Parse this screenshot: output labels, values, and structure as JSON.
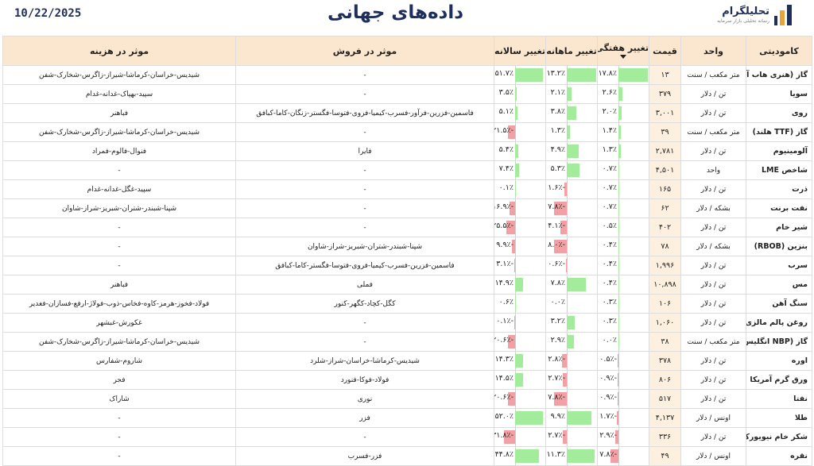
{
  "header": {
    "date": "10/22/2025",
    "title": "داده‌های جهانی",
    "logo_name": "تحلیلگرام",
    "logo_sub": "رسانه تحلیلی بازار سرمایه"
  },
  "columns": {
    "commodity": "کامودیتی",
    "unit": "واحد",
    "price": "قیمت",
    "weekly": "تغییر هفتگی",
    "monthly": "تغییر ماهانه",
    "yearly": "تغییر سالانه",
    "sales": "موثر در فروش",
    "cost": "موثر در هزینه"
  },
  "colors": {
    "positive": "#a3ec9c",
    "negative": "#f2a0a4",
    "header": "#fbe7cf",
    "price_cell": "#fdf0df"
  },
  "rows": [
    {
      "name": "گاز (هنری هاب آمریکا)",
      "unit": "متر مکعب / سنت",
      "price": "۱۳",
      "weekly": 17.8,
      "weekly_text": "۱۷.۸٪",
      "monthly": 13.2,
      "monthly_text": "۱۳.۲٪",
      "yearly": 51.7,
      "yearly_text": "۵۱.۷٪",
      "sales": "-",
      "cost": "شیدیس-خراسان-کرماشا-شیراز-زاگرس-شخارک-شفن"
    },
    {
      "name": "سویا",
      "unit": "تن / دلار",
      "price": "۳۷۹",
      "weekly": 2.6,
      "weekly_text": "۲.۶٪",
      "monthly": 2.1,
      "monthly_text": "۲.۱٪",
      "yearly": 3.5,
      "yearly_text": "۳.۵٪",
      "sales": "-",
      "cost": "سپید-بهپاک-غدانه-غدام"
    },
    {
      "name": "روی",
      "unit": "تن / دلار",
      "price": "۳,۰۰۱",
      "weekly": 2.0,
      "weekly_text": "۲.۰٪",
      "monthly": 3.8,
      "monthly_text": "۳.۸٪",
      "yearly": 5.1,
      "yearly_text": "۵.۱٪",
      "sales": "فاسمین-فزرین-فرآور-فسرب-کیمیا-فروی-فتوسا-فگستر-زنگان-کاما-کبافق",
      "cost": "فباهنر"
    },
    {
      "name": "گاز (TTF هلند)",
      "unit": "متر مکعب / سنت",
      "price": "۳۹",
      "weekly": 1.4,
      "weekly_text": "۱.۴٪",
      "monthly": 1.3,
      "monthly_text": "۱.۳٪",
      "yearly": -21.5,
      "yearly_text": "-۲۱.۵٪",
      "sales": "-",
      "cost": "شیدیس-خراسان-کرماشا-شیراز-زاگرس-شخارک-شفن"
    },
    {
      "name": "آلومینیوم",
      "unit": "تن / دلار",
      "price": "۲,۷۸۱",
      "weekly": 1.3,
      "weekly_text": "۱.۳٪",
      "monthly": 4.9,
      "monthly_text": "۴.۹٪",
      "yearly": 5.4,
      "yearly_text": "۵.۴٪",
      "sales": "فایرا",
      "cost": "فنوال-فالوم-فمراد"
    },
    {
      "name": "شاخص LME",
      "unit": "واحد",
      "price": "۴,۵۰۱",
      "weekly": 0.7,
      "weekly_text": "۰.۷٪",
      "monthly": 5.3,
      "monthly_text": "۵.۳٪",
      "yearly": 7.4,
      "yearly_text": "۷.۴٪",
      "sales": "-",
      "cost": "-"
    },
    {
      "name": "ذرت",
      "unit": "تن / دلار",
      "price": "۱۶۵",
      "weekly": 0.7,
      "weekly_text": "۰.۷٪",
      "monthly": -1.6,
      "monthly_text": "-۱.۶٪",
      "yearly": 0.1,
      "yearly_text": "۰.۱٪",
      "sales": "-",
      "cost": "سپید-غگل-غدانه-غدام"
    },
    {
      "name": "نفت برنت",
      "unit": "بشکه / دلار",
      "price": "۶۲",
      "weekly": 0.7,
      "weekly_text": "۰.۷٪",
      "monthly": -7.8,
      "monthly_text": "-۷.۸٪",
      "yearly": -16.9,
      "yearly_text": "-۱۶.۹٪",
      "sales": "-",
      "cost": "شپنا-شبندر-شتران-شبریز-شراز-شاوان"
    },
    {
      "name": "شیر خام",
      "unit": "تن / دلار",
      "price": "۴۰۲",
      "weekly": 0.5,
      "weekly_text": "۰.۵٪",
      "monthly": -4.1,
      "monthly_text": "-۴.۱٪",
      "yearly": -25.5,
      "yearly_text": "-۲۵.۵٪",
      "sales": "-",
      "cost": "-"
    },
    {
      "name": "بنزین (RBOB)",
      "unit": "بشکه / دلار",
      "price": "۷۸",
      "weekly": 0.4,
      "weekly_text": "۰.۴٪",
      "monthly": -8.0,
      "monthly_text": "-۸.۰٪",
      "yearly": -9.9,
      "yearly_text": "-۹.۹٪",
      "sales": "شپنا-شبندر-شتران-شبریز-شراز-شاوان",
      "cost": "-"
    },
    {
      "name": "سرب",
      "unit": "تن / دلار",
      "price": "۱,۹۹۶",
      "weekly": 0.4,
      "weekly_text": "۰.۴٪",
      "monthly": -0.6,
      "monthly_text": "-۰.۶٪",
      "yearly": -3.1,
      "yearly_text": "-۳.۱٪",
      "sales": "فاسمین-فزرین-فسرب-کیمیا-فروی-فتوسا-فگستر-کاما-کبافق",
      "cost": "-"
    },
    {
      "name": "مس",
      "unit": "تن / دلار",
      "price": "۱۰,۸۹۸",
      "weekly": 0.4,
      "weekly_text": "۰.۴٪",
      "monthly": 7.8,
      "monthly_text": "۷.۸٪",
      "yearly": 14.9,
      "yearly_text": "۱۴.۹٪",
      "sales": "فملی",
      "cost": "فباهنر"
    },
    {
      "name": "سنگ آهن",
      "unit": "تن / دلار",
      "price": "۱۰۶",
      "weekly": 0.3,
      "weekly_text": "۰.۳٪",
      "monthly": 0.0,
      "monthly_text": "۰.۰٪",
      "yearly": 0.6,
      "yearly_text": "۰.۶٪",
      "sales": "کگل-کچاد-کگهر-کنور",
      "cost": "فولاد-فخوز-هرمز-کاوه-فخاس-ذوب-فولاژ-ارفع-فسازان-فغدیر"
    },
    {
      "name": "روغن پالم مالزی",
      "unit": "تن / دلار",
      "price": "۱,۰۶۰",
      "weekly": 0.3,
      "weekly_text": "۰.۳٪",
      "monthly": 3.2,
      "monthly_text": "۳.۲٪",
      "yearly": -0.1,
      "yearly_text": "-۰.۱٪",
      "sales": "-",
      "cost": "غکورش-غبشهر"
    },
    {
      "name": "گاز (NBP انگلیس)",
      "unit": "متر مکعب / سنت",
      "price": "۳۸",
      "weekly": 0.0,
      "weekly_text": "۰.۰٪",
      "monthly": 2.9,
      "monthly_text": "۲.۹٪",
      "yearly": -20.6,
      "yearly_text": "-۲۰.۶٪",
      "sales": "-",
      "cost": "شیدیس-خراسان-کرماشا-شیراز-زاگرس-شخارک-شفن"
    },
    {
      "name": "اوره",
      "unit": "تن / دلار",
      "price": "۳۷۸",
      "weekly": -0.5,
      "weekly_text": "-۰.۵٪",
      "monthly": -2.8,
      "monthly_text": "-۲.۸٪",
      "yearly": 14.3,
      "yearly_text": "۱۴.۳٪",
      "sales": "شیدیس-کرماشا-خراسان-شراز-شلرد",
      "cost": "شاروم-شفارس"
    },
    {
      "name": "ورق گرم آمریکا",
      "unit": "تن / دلار",
      "price": "۸۰۶",
      "weekly": -0.9,
      "weekly_text": "-۰.۹٪",
      "monthly": -2.7,
      "monthly_text": "-۲.۷٪",
      "yearly": 14.5,
      "yearly_text": "۱۴.۵٪",
      "sales": "فولاد-فوکا-فنورد",
      "cost": "فجر"
    },
    {
      "name": "نفتا",
      "unit": "تن / دلار",
      "price": "۵۱۷",
      "weekly": -0.9,
      "weekly_text": "-۰.۹٪",
      "monthly": -7.8,
      "monthly_text": "-۷.۸٪",
      "yearly": -20.6,
      "yearly_text": "-۲۰.۶٪",
      "sales": "نوری",
      "cost": "شاراک"
    },
    {
      "name": "طلا",
      "unit": "اونس / دلار",
      "price": "۴,۱۳۷",
      "weekly": -1.7,
      "weekly_text": "-۱.۷٪",
      "monthly": 9.9,
      "monthly_text": "۹.۹٪",
      "yearly": 52.0,
      "yearly_text": "۵۲.۰٪",
      "sales": "فزر",
      "cost": "-"
    },
    {
      "name": "شکر خام نیویورک",
      "unit": "تن / دلار",
      "price": "۳۳۶",
      "weekly": -2.9,
      "weekly_text": "-۲.۹٪",
      "monthly": -2.7,
      "monthly_text": "-۲.۷٪",
      "yearly": -31.8,
      "yearly_text": "-۳۱.۸٪",
      "sales": "-",
      "cost": "-"
    },
    {
      "name": "نقره",
      "unit": "اونس / دلار",
      "price": "۴۹",
      "weekly": -7.8,
      "weekly_text": "-۷.۸٪",
      "monthly": 11.3,
      "monthly_text": "۱۱.۳٪",
      "yearly": 44.8,
      "yearly_text": "۴۴.۸٪",
      "sales": "فزر-فسرب",
      "cost": "-"
    }
  ]
}
